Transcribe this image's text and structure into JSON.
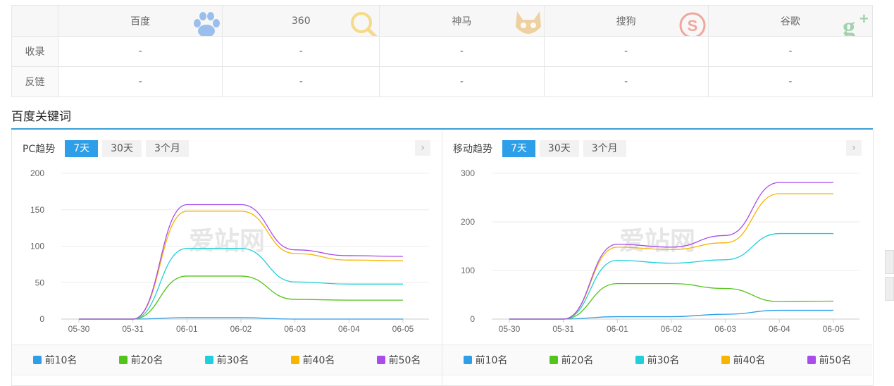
{
  "engines": {
    "headers": [
      "百度",
      "360",
      "神马",
      "搜狗",
      "谷歌"
    ],
    "logos": [
      "baidu-paw-icon",
      "360-search-icon",
      "shenma-fox-icon",
      "sogou-s-icon",
      "google-plus-icon"
    ],
    "logo_colors": [
      "#2d7de0",
      "#f5b800",
      "#e6a53a",
      "#e8452c",
      "#3aa655"
    ],
    "rows": [
      {
        "label": "收录",
        "values": [
          "-",
          "-",
          "-",
          "-",
          "-"
        ]
      },
      {
        "label": "反链",
        "values": [
          "-",
          "-",
          "-",
          "-",
          "-"
        ]
      }
    ]
  },
  "section": {
    "title": "百度关键词"
  },
  "panels": [
    {
      "title": "PC趋势",
      "ranges": [
        "7天",
        "30天",
        "3个月"
      ],
      "active_range": "7天",
      "next": "›",
      "watermark": "爱站网",
      "legend": [
        "前10名",
        "前20名",
        "前30名",
        "前40名",
        "前50名"
      ]
    },
    {
      "title": "移动趋势",
      "ranges": [
        "7天",
        "30天",
        "3个月"
      ],
      "active_range": "7天",
      "next": "›",
      "watermark": "爱站网",
      "legend": [
        "前10名",
        "前20名",
        "前30名",
        "前40名",
        "前50名"
      ]
    }
  ],
  "series_colors": [
    "#2d9ee8",
    "#52c41a",
    "#1fcfd9",
    "#f7b500",
    "#a94cec"
  ],
  "chart_data": [
    {
      "type": "line",
      "x": [
        "05-30",
        "05-31",
        "06-01",
        "06-02",
        "06-03",
        "06-04",
        "06-05"
      ],
      "ylim": [
        0,
        200
      ],
      "yticks": [
        0,
        50,
        100,
        150,
        200
      ],
      "series": [
        {
          "name": "前10名",
          "values": [
            0,
            0,
            2,
            2,
            0,
            0,
            0
          ]
        },
        {
          "name": "前20名",
          "values": [
            0,
            0,
            59,
            59,
            27,
            26,
            26
          ]
        },
        {
          "name": "前30名",
          "values": [
            0,
            0,
            97,
            97,
            51,
            48,
            48
          ]
        },
        {
          "name": "前40名",
          "values": [
            0,
            0,
            148,
            148,
            90,
            81,
            80
          ]
        },
        {
          "name": "前50名",
          "values": [
            0,
            0,
            157,
            157,
            95,
            87,
            86
          ]
        }
      ]
    },
    {
      "type": "line",
      "x": [
        "05-30",
        "05-31",
        "06-01",
        "06-02",
        "06-03",
        "06-04",
        "06-05"
      ],
      "ylim": [
        0,
        300
      ],
      "yticks": [
        0,
        100,
        200,
        300
      ],
      "series": [
        {
          "name": "前10名",
          "values": [
            0,
            0,
            5,
            5,
            10,
            18,
            18
          ]
        },
        {
          "name": "前20名",
          "values": [
            0,
            0,
            73,
            73,
            63,
            36,
            37
          ]
        },
        {
          "name": "前30名",
          "values": [
            0,
            0,
            121,
            115,
            122,
            176,
            176
          ]
        },
        {
          "name": "前40名",
          "values": [
            0,
            0,
            148,
            143,
            157,
            258,
            258
          ]
        },
        {
          "name": "前50名",
          "values": [
            0,
            0,
            154,
            148,
            172,
            281,
            281
          ]
        }
      ]
    }
  ]
}
